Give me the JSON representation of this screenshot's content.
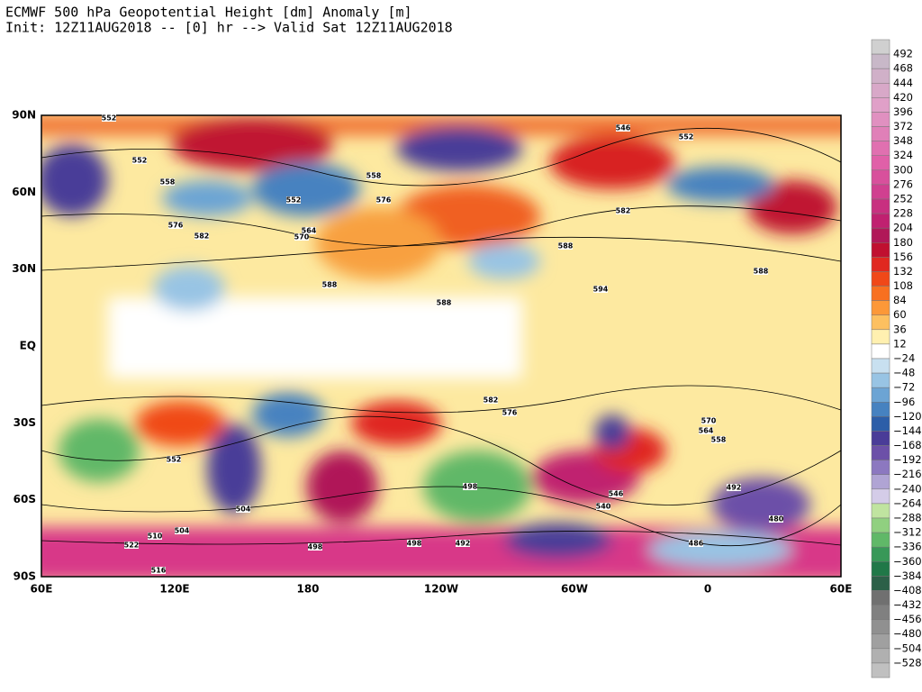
{
  "header": {
    "line1": "ECMWF 500 hPa Geopotential Height [dm] Anomaly [m]",
    "line2": "Init: 12Z11AUG2018 -- [0] hr --> Valid Sat 12Z11AUG2018"
  },
  "map": {
    "lat_labels": [
      "90N",
      "60N",
      "30N",
      "EQ",
      "30S",
      "60S",
      "90S"
    ],
    "lon_labels": [
      "60E",
      "120E",
      "180",
      "120W",
      "60W",
      "0",
      "60E"
    ],
    "contour_labels": [
      552,
      552,
      558,
      576,
      558,
      552,
      564,
      570,
      576,
      582,
      588,
      546,
      552,
      582,
      588,
      594,
      588,
      588,
      582,
      576,
      570,
      564,
      558,
      552,
      498,
      492,
      486,
      480,
      504,
      510,
      516,
      522,
      498,
      492,
      504,
      498,
      540,
      546
    ]
  },
  "colorbar": {
    "labels": [
      "492",
      "468",
      "444",
      "420",
      "396",
      "372",
      "348",
      "324",
      "300",
      "276",
      "252",
      "228",
      "204",
      "180",
      "156",
      "132",
      "108",
      "84",
      "60",
      "36",
      "12",
      "−24",
      "−48",
      "−72",
      "−96",
      "−120",
      "−144",
      "−168",
      "−192",
      "−216",
      "−240",
      "−264",
      "−288",
      "−312",
      "−336",
      "−360",
      "−384",
      "−408",
      "−432",
      "−456",
      "−480",
      "−504",
      "−528"
    ],
    "colors": [
      "#d0d0d0",
      "#c8b8c8",
      "#d0b0c8",
      "#d8a8c8",
      "#e0a0c8",
      "#e090c0",
      "#e080b8",
      "#e070b0",
      "#e060a8",
      "#d8509c",
      "#d04090",
      "#c83080",
      "#c02070",
      "#b01858",
      "#c01030",
      "#e02820",
      "#f04818",
      "#f87020",
      "#fc9838",
      "#fdc060",
      "#fff0b0",
      "#ffffff",
      "#c8e0f0",
      "#98c4e4",
      "#6ca4d4",
      "#4682c0",
      "#2c5ea8",
      "#4a3c98",
      "#6c50a8",
      "#8c78c0",
      "#b0a4d4",
      "#d4cce8",
      "#c0e4a0",
      "#90d080",
      "#60b868",
      "#389858",
      "#207848",
      "#2c6048",
      "#707070",
      "#808080",
      "#909090",
      "#a0a0a0",
      "#b0b0b0",
      "#c0c0c0"
    ]
  }
}
